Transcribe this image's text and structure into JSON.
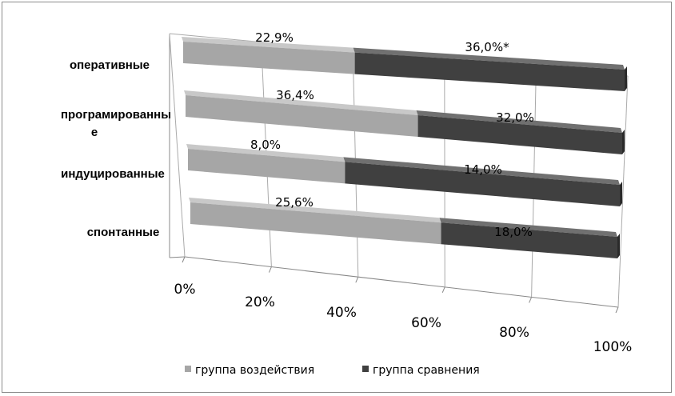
{
  "chart_data": {
    "type": "bar",
    "orientation": "horizontal",
    "stacked": "100%",
    "style": "3d",
    "categories": [
      "оперативные",
      "програмированны\nе",
      "индуцированные",
      "спонтанные"
    ],
    "series": [
      {
        "name": "группа воздействия",
        "color": "#a6a6a6",
        "values": [
          22.9,
          36.4,
          8.0,
          25.6
        ],
        "labels": [
          "22,9%",
          "36,4%",
          "8,0%",
          "25,6%"
        ]
      },
      {
        "name": "группа сравнения",
        "color": "#404040",
        "values": [
          36.0,
          32.0,
          14.0,
          18.0
        ],
        "labels": [
          "36,0%*",
          "32,0%",
          "14,0%",
          "18,0%"
        ]
      }
    ],
    "x_ticks": [
      "0%",
      "20%",
      "40%",
      "60%",
      "80%",
      "100%"
    ],
    "xlim": [
      0,
      100
    ],
    "grid": true,
    "legend": "bottom"
  }
}
